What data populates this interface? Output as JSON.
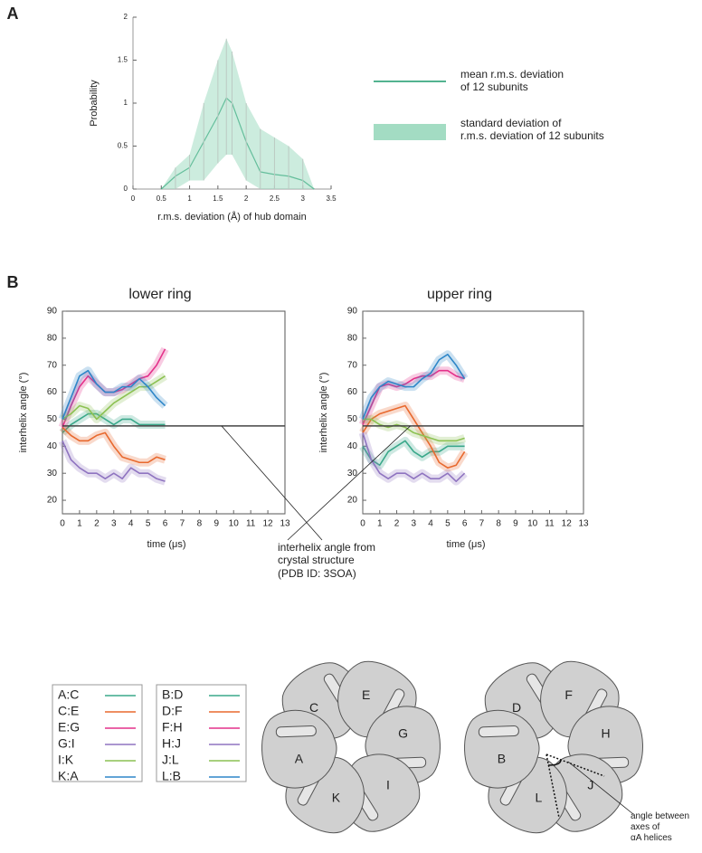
{
  "chart_data": [
    {
      "type": "line",
      "panel": "A",
      "xlabel": "r.m.s. deviation (Å) of hub domain",
      "ylabel": "Probability",
      "x": [
        0.5,
        0.75,
        1,
        1.25,
        1.5,
        1.65,
        1.75,
        2,
        2.25,
        2.5,
        2.75,
        3,
        3.2
      ],
      "series": [
        {
          "name": "mean r.m.s. deviation\nof 12 subunits",
          "color": "#1a9a6c",
          "values": [
            0,
            0.15,
            0.25,
            0.55,
            0.85,
            1.06,
            1.0,
            0.55,
            0.2,
            0.17,
            0.15,
            0.1,
            0
          ]
        },
        {
          "name": "standard deviation of\nr.m.s. deviation of 12 subunits",
          "color": "#a3dcc3",
          "upper": [
            0,
            0.25,
            0.4,
            1.0,
            1.5,
            1.75,
            1.6,
            1.0,
            0.7,
            0.6,
            0.5,
            0.35,
            0
          ],
          "lower": [
            0,
            0,
            0.1,
            0.1,
            0.3,
            0.4,
            0.4,
            0.1,
            0,
            0,
            0,
            0,
            0
          ]
        }
      ],
      "xlim": [
        0,
        3.5
      ],
      "xticks": [
        0,
        0.5,
        1,
        1.5,
        2,
        2.5,
        3,
        3.5
      ],
      "ylim": [
        0,
        2
      ],
      "yticks": [
        0,
        0.5,
        1,
        1.5,
        2
      ]
    },
    {
      "type": "line",
      "panel": "B",
      "title": "lower ring",
      "xlabel": "time (μs)",
      "ylabel": "interhelix angle (°)",
      "reference": 47.5,
      "annotation": "interhelix angle from\ncrystal structure\n(PDB ID: 3SOA)",
      "x": [
        0,
        0.5,
        1,
        1.5,
        2,
        2.5,
        3,
        3.5,
        4,
        4.5,
        5,
        5.5,
        6
      ],
      "series": [
        {
          "name": "A:C",
          "color": "#3aa88a",
          "values": [
            45,
            48,
            50,
            52,
            52,
            50,
            48,
            50,
            50,
            48,
            48,
            48,
            48
          ]
        },
        {
          "name": "C:E",
          "color": "#e8692e",
          "values": [
            47,
            44,
            42,
            42,
            44,
            45,
            40,
            36,
            35,
            34,
            34,
            36,
            35
          ]
        },
        {
          "name": "E:G",
          "color": "#e4318a",
          "values": [
            47,
            55,
            62,
            66,
            63,
            60,
            60,
            61,
            63,
            65,
            66,
            70,
            76
          ]
        },
        {
          "name": "G:I",
          "color": "#8f74c0",
          "values": [
            42,
            35,
            32,
            30,
            30,
            28,
            30,
            28,
            32,
            30,
            30,
            28,
            27
          ]
        },
        {
          "name": "I:K",
          "color": "#8cc152",
          "values": [
            50,
            52,
            55,
            54,
            50,
            53,
            56,
            58,
            60,
            62,
            62,
            64,
            66
          ]
        },
        {
          "name": "K:A",
          "color": "#2e86c8",
          "values": [
            50,
            58,
            66,
            68,
            63,
            60,
            60,
            62,
            62,
            65,
            62,
            58,
            55
          ]
        }
      ],
      "xlim": [
        0,
        13
      ],
      "xticks": [
        0,
        1,
        2,
        3,
        4,
        5,
        6,
        7,
        8,
        9,
        10,
        11,
        12,
        13
      ],
      "ylim": [
        15,
        90
      ],
      "yticks": [
        20,
        30,
        40,
        50,
        60,
        70,
        80,
        90
      ]
    },
    {
      "type": "line",
      "title": "upper ring",
      "xlabel": "time (μs)",
      "ylabel": "interhelix angle (°)",
      "reference": 47.5,
      "x": [
        0,
        0.5,
        1,
        1.5,
        2,
        2.5,
        3,
        3.5,
        4,
        4.5,
        5,
        5.5,
        6
      ],
      "series": [
        {
          "name": "B:D",
          "color": "#3aa88a",
          "values": [
            40,
            35,
            33,
            38,
            40,
            42,
            38,
            36,
            38,
            38,
            40,
            40,
            40
          ]
        },
        {
          "name": "D:F",
          "color": "#e8692e",
          "values": [
            45,
            50,
            52,
            53,
            54,
            55,
            50,
            45,
            40,
            34,
            32,
            33,
            38
          ]
        },
        {
          "name": "F:H",
          "color": "#e4318a",
          "values": [
            48,
            55,
            62,
            63,
            62,
            63,
            65,
            66,
            66,
            68,
            68,
            66,
            65
          ]
        },
        {
          "name": "H:J",
          "color": "#8f74c0",
          "values": [
            45,
            35,
            30,
            28,
            30,
            30,
            28,
            30,
            28,
            28,
            30,
            27,
            30
          ]
        },
        {
          "name": "J:L",
          "color": "#8cc152",
          "values": [
            50,
            50,
            48,
            47,
            48,
            47,
            45,
            44,
            43,
            42,
            42,
            42,
            43
          ]
        },
        {
          "name": "L:B",
          "color": "#2e86c8",
          "values": [
            50,
            58,
            62,
            64,
            63,
            62,
            62,
            65,
            67,
            72,
            74,
            70,
            65
          ]
        }
      ],
      "xlim": [
        0,
        13
      ],
      "xticks": [
        0,
        1,
        2,
        3,
        4,
        5,
        6,
        7,
        8,
        9,
        10,
        11,
        12,
        13
      ],
      "ylim": [
        15,
        90
      ],
      "yticks": [
        20,
        30,
        40,
        50,
        60,
        70,
        80,
        90
      ]
    }
  ],
  "diagram": {
    "rings": [
      {
        "title": "lower ring",
        "subunits": [
          "C",
          "E",
          "G",
          "I",
          "K",
          "A"
        ]
      },
      {
        "title": "upper ring",
        "subunits": [
          "D",
          "F",
          "H",
          "J",
          "L",
          "B"
        ]
      }
    ],
    "annotation": "angle between\naxes of\nαA helices"
  }
}
